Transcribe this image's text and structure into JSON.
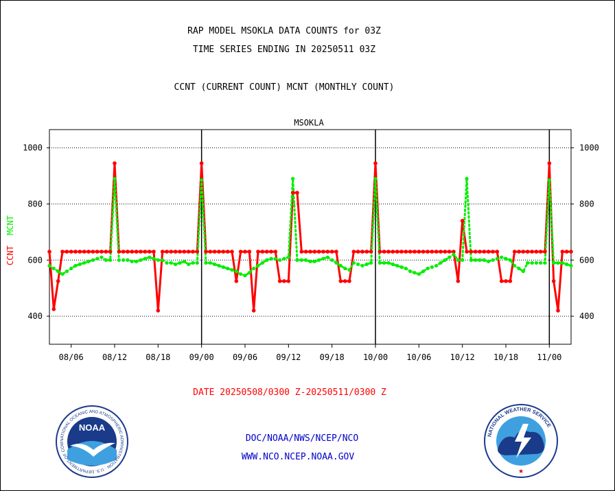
{
  "title_line1": "RAP MODEL MSOKLA DATA COUNTS for 03Z",
  "title_line2": "TIME SERIES ENDING IN 20250511 03Z",
  "subtitle": "CCNT (CURRENT COUNT) MCNT (MONTHLY COUNT)",
  "date_range": "DATE 20250508/0300 Z-20250511/0300 Z",
  "footer_line1": "DOC/NOAA/NWS/NCEP/NCO",
  "footer_line2": "WWW.NCO.NCEP.NOAA.GOV",
  "logos": {
    "left_text": "NOAA",
    "left_ring_text": "NATIONAL OCEANIC AND ATMOSPHERIC ADMINISTRATION · U.S. DEPARTMENT OF COMMERCE",
    "right_ring_text": "NATIONAL WEATHER SERVICE"
  },
  "colors": {
    "ccnt": "#ff0000",
    "mcnt": "#00ee00",
    "station": "#0000cc",
    "footer": "#0000cc",
    "date": "#ff0000"
  },
  "chart_data": {
    "type": "line",
    "title": "MSOKLA",
    "ylabel_left": [
      "CCNT",
      "MCNT"
    ],
    "ylim": [
      300,
      1065
    ],
    "yticks": [
      400,
      600,
      800,
      1000
    ],
    "xlim": [
      0,
      120
    ],
    "xticks": [
      {
        "x": 5,
        "label": "08/06"
      },
      {
        "x": 15,
        "label": "08/12"
      },
      {
        "x": 25,
        "label": "08/18"
      },
      {
        "x": 35,
        "label": "09/00"
      },
      {
        "x": 45,
        "label": "09/06"
      },
      {
        "x": 55,
        "label": "09/12"
      },
      {
        "x": 65,
        "label": "09/18"
      },
      {
        "x": 75,
        "label": "10/00"
      },
      {
        "x": 85,
        "label": "10/06"
      },
      {
        "x": 95,
        "label": "10/12"
      },
      {
        "x": 105,
        "label": "10/18"
      },
      {
        "x": 115,
        "label": "11/00"
      }
    ],
    "day_boundaries": [
      35,
      75,
      115
    ],
    "grid": "horizontal dotted",
    "series": [
      {
        "name": "CCNT",
        "style": "solid",
        "values": [
          630,
          425,
          525,
          630,
          630,
          630,
          630,
          630,
          630,
          630,
          630,
          630,
          630,
          630,
          630,
          945,
          630,
          630,
          630,
          630,
          630,
          630,
          630,
          630,
          630,
          420,
          630,
          630,
          630,
          630,
          630,
          630,
          630,
          630,
          630,
          945,
          630,
          630,
          630,
          630,
          630,
          630,
          630,
          525,
          630,
          630,
          630,
          420,
          630,
          630,
          630,
          630,
          630,
          525,
          525,
          525,
          840,
          840,
          630,
          630,
          630,
          630,
          630,
          630,
          630,
          630,
          630,
          525,
          525,
          525,
          630,
          630,
          630,
          630,
          630,
          945,
          630,
          630,
          630,
          630,
          630,
          630,
          630,
          630,
          630,
          630,
          630,
          630,
          630,
          630,
          630,
          630,
          630,
          630,
          525,
          740,
          630,
          630,
          630,
          630,
          630,
          630,
          630,
          630,
          525,
          525,
          525,
          630,
          630,
          630,
          630,
          630,
          630,
          630,
          630,
          945,
          525,
          420,
          630,
          630,
          630
        ]
      },
      {
        "name": "MCNT",
        "style": "dotted",
        "values": [
          580,
          570,
          560,
          550,
          560,
          570,
          580,
          585,
          590,
          595,
          600,
          605,
          610,
          600,
          600,
          890,
          600,
          600,
          600,
          595,
          595,
          600,
          605,
          610,
          605,
          600,
          600,
          590,
          590,
          585,
          590,
          595,
          585,
          590,
          590,
          885,
          590,
          590,
          585,
          580,
          575,
          570,
          565,
          560,
          550,
          545,
          555,
          570,
          580,
          590,
          600,
          605,
          605,
          600,
          605,
          610,
          890,
          600,
          600,
          600,
          595,
          595,
          600,
          605,
          610,
          600,
          590,
          580,
          570,
          565,
          590,
          585,
          580,
          585,
          590,
          890,
          590,
          590,
          590,
          585,
          580,
          575,
          570,
          560,
          555,
          550,
          560,
          570,
          575,
          580,
          590,
          600,
          610,
          620,
          600,
          600,
          890,
          600,
          600,
          600,
          600,
          595,
          600,
          605,
          610,
          605,
          600,
          580,
          570,
          560,
          590,
          590,
          590,
          590,
          590,
          885,
          590,
          590,
          590,
          585,
          580
        ]
      }
    ]
  }
}
